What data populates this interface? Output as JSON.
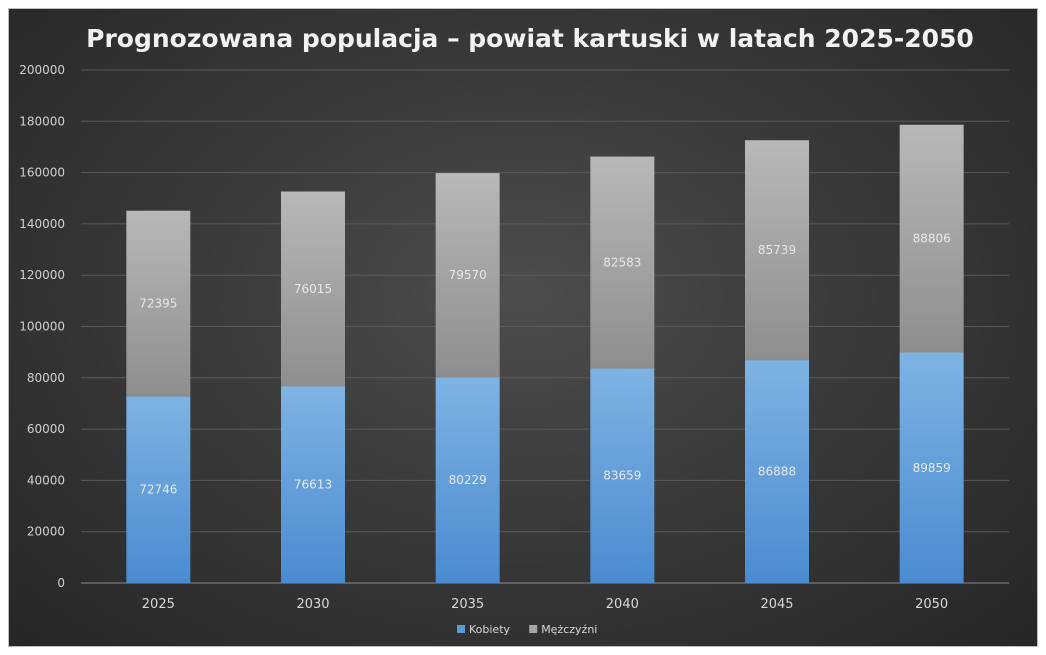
{
  "chart_data": {
    "type": "bar",
    "stacked": true,
    "title": "Prognozowana populacja – powiat kartuski w latach 2025-2050",
    "xlabel": "",
    "ylabel": "",
    "categories": [
      "2025",
      "2030",
      "2035",
      "2040",
      "2045",
      "2050"
    ],
    "series": [
      {
        "name": "Kobiety",
        "values": [
          72746,
          76613,
          80229,
          83659,
          86888,
          89859
        ],
        "color": "#5b9bd5"
      },
      {
        "name": "Mężczyźni",
        "values": [
          72395,
          76015,
          79570,
          82583,
          85739,
          88806
        ],
        "color": "#a5a5a5"
      }
    ],
    "ylim": [
      0,
      200000
    ],
    "yticks": [
      0,
      20000,
      40000,
      60000,
      80000,
      100000,
      120000,
      140000,
      160000,
      180000,
      200000
    ],
    "grid": true,
    "legend": "bottom-center",
    "data_labels": true
  }
}
